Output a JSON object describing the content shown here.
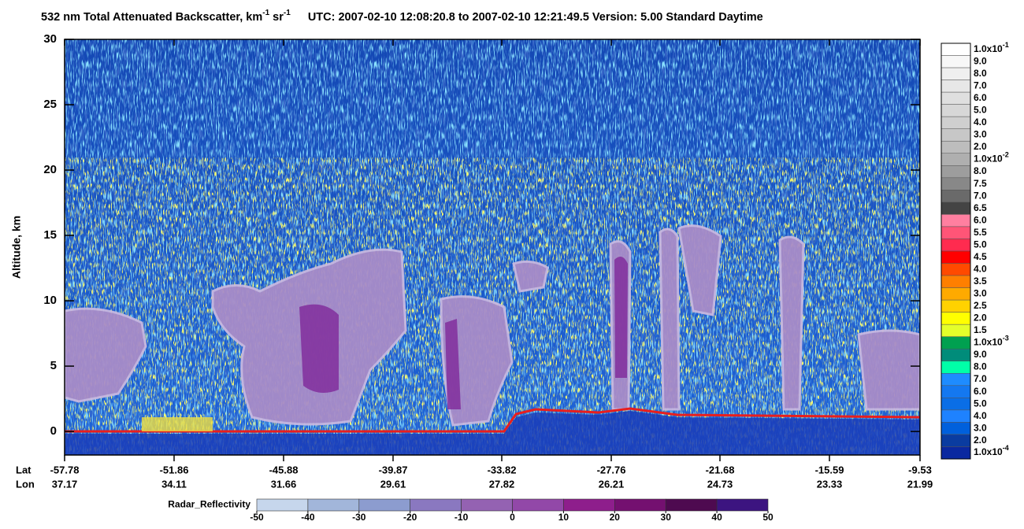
{
  "chart_data": {
    "type": "curtain",
    "title": {
      "main": "532 nm Total Attenuated Backscatter, km",
      "exp1": "-1",
      "unit2": " sr",
      "exp2": "-1",
      "info": "UTC:  2007-02-10 12:08:20.8  to  2007-02-10 12:21:49.5    Version: 5.00  Standard  Daytime"
    },
    "y_label": "Altitude, km",
    "ylim": [
      -1.8,
      30
    ],
    "yticks": [
      0,
      5,
      10,
      15,
      20,
      25,
      30
    ],
    "x_rows": [
      {
        "name": "Lat",
        "values": [
          -57.78,
          -51.86,
          -45.88,
          -39.87,
          -33.82,
          -27.76,
          -21.68,
          -15.59,
          -9.53
        ]
      },
      {
        "name": "Lon",
        "values": [
          37.17,
          34.11,
          31.66,
          29.61,
          27.82,
          26.21,
          24.73,
          23.33,
          21.99
        ]
      }
    ],
    "colorbar": {
      "labels": [
        {
          "base": "1.0x10",
          "exp": "-1"
        },
        "9.0",
        "8.0",
        "7.0",
        "6.0",
        "5.0",
        "4.0",
        "3.0",
        "2.0",
        {
          "base": "1.0x10",
          "exp": "-2"
        },
        "8.0",
        "7.5",
        "7.0",
        "6.5",
        "6.0",
        "5.5",
        "5.0",
        "4.5",
        "4.0",
        "3.5",
        "3.0",
        "2.5",
        "2.0",
        "1.5",
        {
          "base": "1.0x10",
          "exp": "-3"
        },
        "9.0",
        "8.0",
        "7.0",
        "6.0",
        "5.0",
        "4.0",
        "3.0",
        "2.0",
        {
          "base": "1.0x10",
          "exp": "-4"
        }
      ],
      "colors": [
        "#ffffff",
        "#f7f7f7",
        "#efefef",
        "#e7e7e7",
        "#dfdfdf",
        "#d7d7d7",
        "#cfcfcf",
        "#c7c7c7",
        "#bdbdbd",
        "#afafaf",
        "#9d9d9d",
        "#888888",
        "#6a6a6a",
        "#444444",
        "#ff7fa0",
        "#ff5577",
        "#ff2b4f",
        "#ff0000",
        "#ff4a00",
        "#ff7f00",
        "#ffaa00",
        "#ffd200",
        "#ffff00",
        "#e4ff2a",
        "#00a050",
        "#008c7a",
        "#00ffa8",
        "#1e8cff",
        "#1478f0",
        "#0a6ee6",
        "#1e82ff",
        "#0060dc",
        "#0a3ca0",
        "#0a28a0"
      ]
    },
    "radar_bar": {
      "title": "Radar_Reflectivity",
      "lim": [
        -50,
        50
      ],
      "ticks": [
        -50,
        -40,
        -30,
        -20,
        -10,
        0,
        10,
        20,
        30,
        40,
        50
      ],
      "colors": [
        "#c6d6ec",
        "#a2b6da",
        "#8c9ccf",
        "#8a78c0",
        "#9462b2",
        "#9248a8",
        "#8e1e8c",
        "#741070",
        "#4e0a50",
        "#3c1480"
      ]
    }
  }
}
